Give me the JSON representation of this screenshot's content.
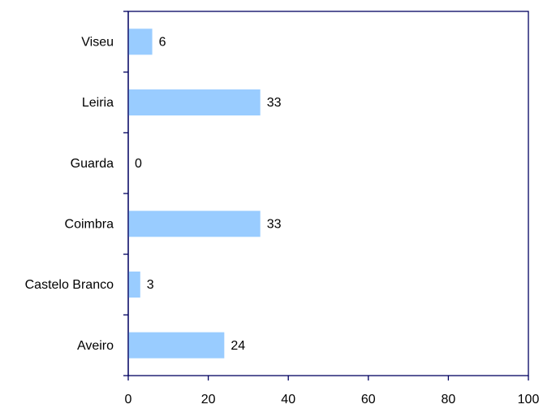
{
  "chart_data": {
    "type": "bar",
    "orientation": "horizontal",
    "categories": [
      "Viseu",
      "Leiria",
      "Guarda",
      "Coimbra",
      "Castelo Branco",
      "Aveiro"
    ],
    "values": [
      6,
      33,
      0,
      33,
      3,
      24
    ],
    "color": "#99ccff",
    "xlim": [
      0,
      100
    ],
    "xticks": [
      0,
      20,
      40,
      60,
      80,
      100
    ]
  }
}
